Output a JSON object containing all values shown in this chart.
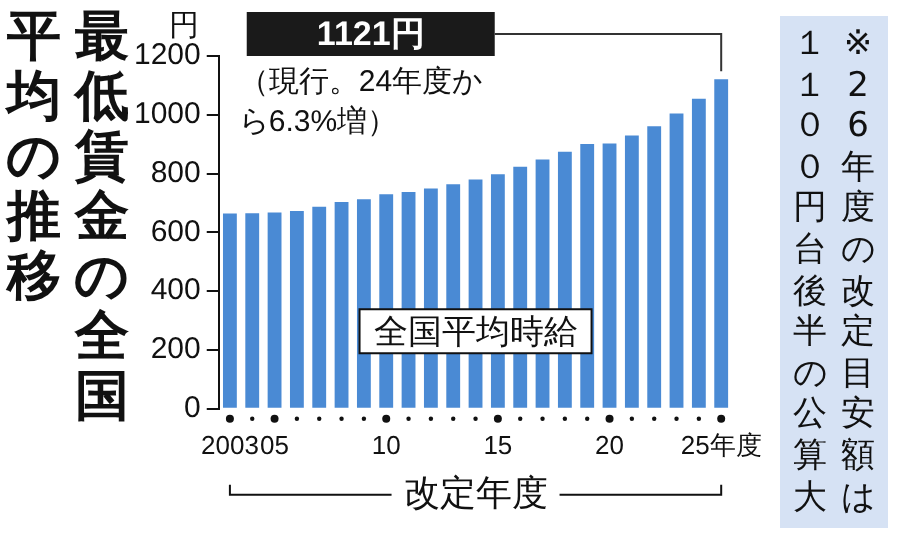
{
  "chart_data": {
    "type": "bar",
    "title": "最低賃金の全国平均の推移",
    "xlabel": "改定年度",
    "ylabel": "円",
    "categories": [
      "2003",
      null,
      "05",
      null,
      null,
      null,
      null,
      "10",
      null,
      null,
      null,
      null,
      "15",
      null,
      null,
      null,
      null,
      "20",
      null,
      null,
      null,
      null,
      "25年度"
    ],
    "series": [
      {
        "name": "全国平均時給",
        "color": "#4a8ad4",
        "values": [
          664,
          665,
          668,
          673,
          687,
          703,
          713,
          730,
          737,
          749,
          764,
          780,
          798,
          823,
          848,
          874,
          901,
          902,
          930,
          961,
          1004,
          1055,
          1121
        ]
      }
    ],
    "ylim": [
      0,
      1200
    ],
    "yticks": [
      0,
      200,
      400,
      600,
      800,
      1000,
      1200
    ],
    "grid": false,
    "legend": false,
    "annotations": [
      "1121円",
      "（現行。24年度から6.3%増）",
      "※26年度の改定目安額は１１００円台後半の公算大"
    ]
  }
}
